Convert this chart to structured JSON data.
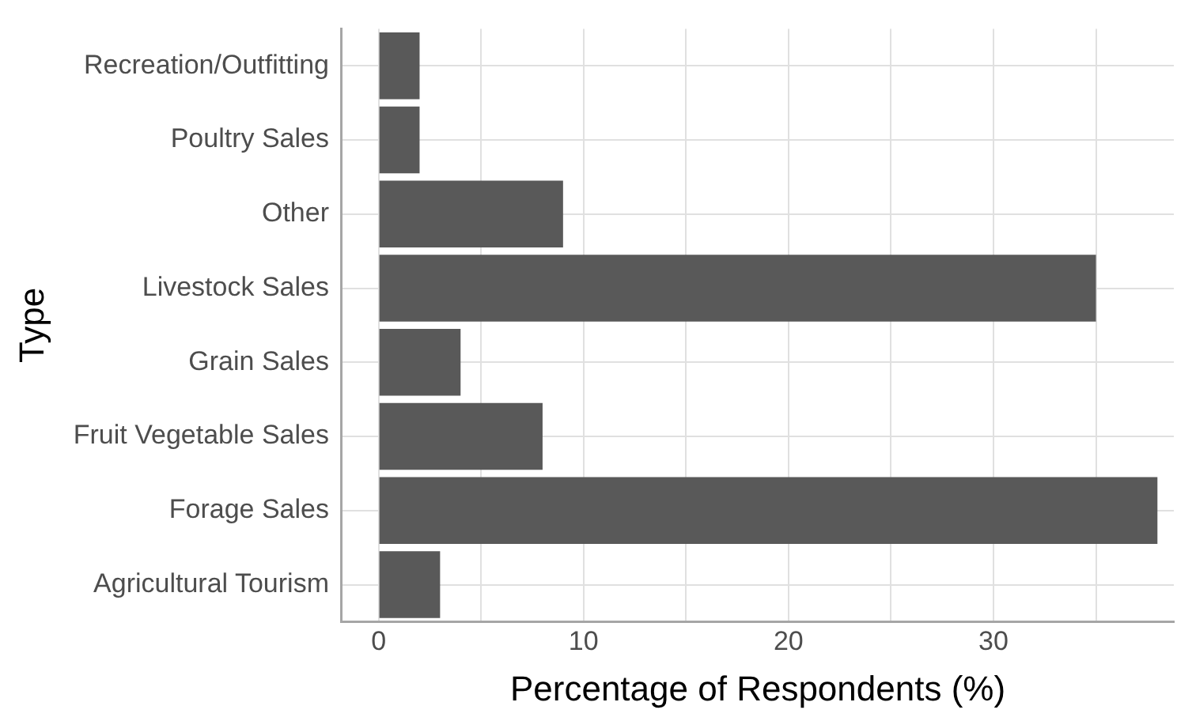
{
  "chart_data": {
    "type": "bar",
    "orientation": "horizontal",
    "xlabel": "Percentage of Respondents (%)",
    "ylabel": "Type",
    "categories": [
      "Recreation/Outfitting",
      "Poultry Sales",
      "Other",
      "Livestock Sales",
      "Grain Sales",
      "Fruit Vegetable Sales",
      "Forage Sales",
      "Agricultural Tourism"
    ],
    "values": [
      2,
      2,
      9,
      35,
      4,
      8,
      38,
      3
    ],
    "color": "#595959",
    "xlim": [
      -1.8,
      38.8
    ],
    "xticks": [
      0,
      {
        "value": 5,
        "label": null
      },
      10,
      {
        "value": 15,
        "label": null
      },
      20,
      {
        "value": 25,
        "label": null
      },
      30,
      {
        "value": 35,
        "label": null
      }
    ],
    "grid": true,
    "legend": false
  }
}
